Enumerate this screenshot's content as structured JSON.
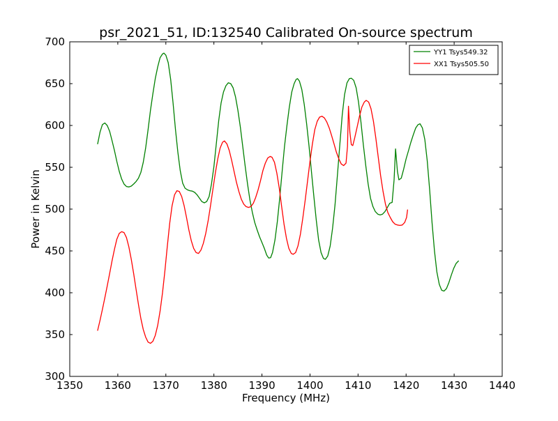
{
  "chart_data": {
    "type": "line",
    "title": "psr_2021_51, ID:132540 Calibrated On-source spectrum",
    "xlabel": "Frequency (MHz)",
    "ylabel": "Power in Kelvin",
    "xlim": [
      1350,
      1440
    ],
    "ylim": [
      300,
      700
    ],
    "x_ticks": [
      1350,
      1360,
      1370,
      1380,
      1390,
      1400,
      1410,
      1420,
      1430,
      1440
    ],
    "y_ticks": [
      300,
      350,
      400,
      450,
      500,
      550,
      600,
      650,
      700
    ],
    "grid": false,
    "legend_position": "upper-right",
    "series": [
      {
        "name": "YY1 Tsys549.32",
        "color": "#008000",
        "points": [
          [
            1355.8,
            578
          ],
          [
            1356.3,
            592
          ],
          [
            1356.8,
            601
          ],
          [
            1357.3,
            603
          ],
          [
            1357.8,
            600
          ],
          [
            1358.3,
            593
          ],
          [
            1358.8,
            582
          ],
          [
            1359.3,
            570
          ],
          [
            1359.8,
            557
          ],
          [
            1360.3,
            545
          ],
          [
            1360.8,
            536
          ],
          [
            1361.3,
            530
          ],
          [
            1361.8,
            527
          ],
          [
            1362.3,
            526.5
          ],
          [
            1362.8,
            527.5
          ],
          [
            1363.3,
            530
          ],
          [
            1363.8,
            533
          ],
          [
            1364.3,
            537
          ],
          [
            1364.8,
            544
          ],
          [
            1365.3,
            556
          ],
          [
            1365.8,
            573
          ],
          [
            1366.3,
            595
          ],
          [
            1366.8,
            618
          ],
          [
            1367.3,
            638
          ],
          [
            1367.8,
            656
          ],
          [
            1368.3,
            670
          ],
          [
            1368.8,
            681
          ],
          [
            1369.3,
            685.5
          ],
          [
            1369.6,
            686.5
          ],
          [
            1370.0,
            684
          ],
          [
            1370.5,
            675
          ],
          [
            1371.0,
            655
          ],
          [
            1371.5,
            627
          ],
          [
            1372.0,
            595
          ],
          [
            1372.5,
            568
          ],
          [
            1373.0,
            546
          ],
          [
            1373.5,
            531
          ],
          [
            1374.0,
            525
          ],
          [
            1374.5,
            523
          ],
          [
            1375.0,
            522
          ],
          [
            1375.5,
            521.5
          ],
          [
            1376.0,
            520
          ],
          [
            1376.5,
            517
          ],
          [
            1377.0,
            513
          ],
          [
            1377.5,
            509
          ],
          [
            1378.0,
            507.5
          ],
          [
            1378.5,
            509
          ],
          [
            1379.0,
            515
          ],
          [
            1379.5,
            530
          ],
          [
            1380.0,
            551
          ],
          [
            1380.5,
            578
          ],
          [
            1381.0,
            606
          ],
          [
            1381.5,
            627
          ],
          [
            1382.0,
            640
          ],
          [
            1382.5,
            647.5
          ],
          [
            1383.0,
            651
          ],
          [
            1383.5,
            650
          ],
          [
            1384.0,
            645
          ],
          [
            1384.5,
            634
          ],
          [
            1385.0,
            618
          ],
          [
            1385.5,
            598
          ],
          [
            1386.0,
            575
          ],
          [
            1386.5,
            552
          ],
          [
            1387.0,
            530
          ],
          [
            1387.5,
            511
          ],
          [
            1388.0,
            496
          ],
          [
            1388.5,
            484
          ],
          [
            1389.0,
            475
          ],
          [
            1389.5,
            467
          ],
          [
            1390.0,
            460
          ],
          [
            1390.5,
            453
          ],
          [
            1391.0,
            445
          ],
          [
            1391.4,
            441.5
          ],
          [
            1391.8,
            442
          ],
          [
            1392.2,
            448
          ],
          [
            1392.7,
            463
          ],
          [
            1393.2,
            485
          ],
          [
            1393.7,
            513
          ],
          [
            1394.2,
            545
          ],
          [
            1394.7,
            575
          ],
          [
            1395.2,
            600
          ],
          [
            1395.7,
            622
          ],
          [
            1396.2,
            640
          ],
          [
            1396.7,
            650
          ],
          [
            1397.1,
            655
          ],
          [
            1397.4,
            656
          ],
          [
            1397.8,
            653
          ],
          [
            1398.3,
            643
          ],
          [
            1398.8,
            625
          ],
          [
            1399.3,
            602
          ],
          [
            1399.8,
            575
          ],
          [
            1400.3,
            545
          ],
          [
            1400.8,
            515
          ],
          [
            1401.3,
            487
          ],
          [
            1401.8,
            463
          ],
          [
            1402.3,
            448
          ],
          [
            1402.8,
            441
          ],
          [
            1403.2,
            440
          ],
          [
            1403.7,
            444
          ],
          [
            1404.2,
            456
          ],
          [
            1404.7,
            477
          ],
          [
            1405.2,
            505
          ],
          [
            1405.7,
            540
          ],
          [
            1406.2,
            577
          ],
          [
            1406.7,
            612
          ],
          [
            1407.2,
            637
          ],
          [
            1407.7,
            651
          ],
          [
            1408.2,
            656
          ],
          [
            1408.6,
            656.5
          ],
          [
            1409.1,
            654
          ],
          [
            1409.6,
            645
          ],
          [
            1410.1,
            628
          ],
          [
            1410.6,
            604
          ],
          [
            1411.1,
            577
          ],
          [
            1411.6,
            552
          ],
          [
            1412.1,
            530
          ],
          [
            1412.6,
            513
          ],
          [
            1413.1,
            503
          ],
          [
            1413.6,
            497
          ],
          [
            1414.1,
            494
          ],
          [
            1414.6,
            493
          ],
          [
            1415.1,
            494
          ],
          [
            1415.6,
            497
          ],
          [
            1416.1,
            502
          ],
          [
            1416.6,
            507
          ],
          [
            1417.1,
            508
          ],
          [
            1417.5,
            535
          ],
          [
            1417.8,
            572
          ],
          [
            1418.2,
            545
          ],
          [
            1418.5,
            535
          ],
          [
            1419.0,
            537
          ],
          [
            1419.5,
            548
          ],
          [
            1420.0,
            560
          ],
          [
            1420.5,
            570
          ],
          [
            1421.0,
            580
          ],
          [
            1421.5,
            589
          ],
          [
            1422.0,
            597
          ],
          [
            1422.5,
            601
          ],
          [
            1422.9,
            602
          ],
          [
            1423.4,
            597
          ],
          [
            1423.9,
            583
          ],
          [
            1424.4,
            558
          ],
          [
            1424.9,
            523
          ],
          [
            1425.4,
            484
          ],
          [
            1425.9,
            450
          ],
          [
            1426.4,
            425
          ],
          [
            1426.9,
            410
          ],
          [
            1427.4,
            403
          ],
          [
            1427.9,
            402
          ],
          [
            1428.4,
            405
          ],
          [
            1428.9,
            412
          ],
          [
            1429.4,
            421
          ],
          [
            1429.9,
            429
          ],
          [
            1430.4,
            435
          ],
          [
            1430.9,
            438
          ]
        ]
      },
      {
        "name": "XX1 Tsys505.50",
        "color": "#ff0000",
        "points": [
          [
            1355.8,
            355
          ],
          [
            1356.3,
            367
          ],
          [
            1356.8,
            380
          ],
          [
            1357.3,
            394
          ],
          [
            1357.8,
            408
          ],
          [
            1358.3,
            423
          ],
          [
            1358.8,
            438
          ],
          [
            1359.3,
            452
          ],
          [
            1359.8,
            464
          ],
          [
            1360.3,
            471
          ],
          [
            1360.8,
            473
          ],
          [
            1361.3,
            472
          ],
          [
            1361.8,
            466
          ],
          [
            1362.3,
            455
          ],
          [
            1362.8,
            440
          ],
          [
            1363.3,
            423
          ],
          [
            1363.8,
            404
          ],
          [
            1364.3,
            386
          ],
          [
            1364.8,
            369
          ],
          [
            1365.3,
            356
          ],
          [
            1365.8,
            347
          ],
          [
            1366.3,
            341
          ],
          [
            1366.8,
            339.5
          ],
          [
            1367.3,
            342
          ],
          [
            1367.8,
            349
          ],
          [
            1368.3,
            361
          ],
          [
            1368.8,
            378
          ],
          [
            1369.3,
            400
          ],
          [
            1369.8,
            426
          ],
          [
            1370.3,
            455
          ],
          [
            1370.8,
            483
          ],
          [
            1371.3,
            504
          ],
          [
            1371.8,
            517
          ],
          [
            1372.3,
            522
          ],
          [
            1372.8,
            521
          ],
          [
            1373.3,
            515
          ],
          [
            1373.8,
            504
          ],
          [
            1374.3,
            490
          ],
          [
            1374.8,
            475
          ],
          [
            1375.3,
            462
          ],
          [
            1375.8,
            453
          ],
          [
            1376.3,
            448
          ],
          [
            1376.8,
            447
          ],
          [
            1377.3,
            451
          ],
          [
            1377.8,
            459
          ],
          [
            1378.3,
            471
          ],
          [
            1378.8,
            486
          ],
          [
            1379.3,
            504
          ],
          [
            1379.8,
            524
          ],
          [
            1380.3,
            543
          ],
          [
            1380.8,
            560
          ],
          [
            1381.3,
            573
          ],
          [
            1381.8,
            580
          ],
          [
            1382.2,
            581.5
          ],
          [
            1382.7,
            578
          ],
          [
            1383.2,
            570
          ],
          [
            1383.7,
            558
          ],
          [
            1384.2,
            545
          ],
          [
            1384.7,
            532
          ],
          [
            1385.2,
            521
          ],
          [
            1385.7,
            512
          ],
          [
            1386.2,
            506
          ],
          [
            1386.7,
            503
          ],
          [
            1387.2,
            502
          ],
          [
            1387.7,
            503
          ],
          [
            1388.2,
            507
          ],
          [
            1388.7,
            514
          ],
          [
            1389.2,
            523
          ],
          [
            1389.7,
            534
          ],
          [
            1390.2,
            546
          ],
          [
            1390.7,
            555
          ],
          [
            1391.2,
            561
          ],
          [
            1391.7,
            563
          ],
          [
            1392.1,
            562
          ],
          [
            1392.6,
            556
          ],
          [
            1393.1,
            543
          ],
          [
            1393.6,
            525
          ],
          [
            1394.1,
            503
          ],
          [
            1394.6,
            482
          ],
          [
            1395.1,
            465
          ],
          [
            1395.6,
            453
          ],
          [
            1396.1,
            447
          ],
          [
            1396.5,
            446
          ],
          [
            1397.0,
            448
          ],
          [
            1397.5,
            456
          ],
          [
            1398.0,
            470
          ],
          [
            1398.5,
            489
          ],
          [
            1399.0,
            511
          ],
          [
            1399.5,
            534
          ],
          [
            1400.0,
            557
          ],
          [
            1400.5,
            578
          ],
          [
            1401.0,
            595
          ],
          [
            1401.5,
            605
          ],
          [
            1402.0,
            610
          ],
          [
            1402.5,
            611
          ],
          [
            1403.0,
            609
          ],
          [
            1403.5,
            604
          ],
          [
            1404.0,
            597
          ],
          [
            1404.5,
            588
          ],
          [
            1405.0,
            578
          ],
          [
            1405.5,
            568
          ],
          [
            1406.0,
            560
          ],
          [
            1406.5,
            554
          ],
          [
            1407.0,
            552
          ],
          [
            1407.5,
            555
          ],
          [
            1407.8,
            575
          ],
          [
            1408.0,
            623
          ],
          [
            1408.3,
            592
          ],
          [
            1408.6,
            577
          ],
          [
            1408.9,
            576
          ],
          [
            1409.3,
            585
          ],
          [
            1409.8,
            598
          ],
          [
            1410.3,
            611
          ],
          [
            1410.8,
            622
          ],
          [
            1411.3,
            628
          ],
          [
            1411.7,
            630
          ],
          [
            1412.2,
            628
          ],
          [
            1412.7,
            620
          ],
          [
            1413.2,
            605
          ],
          [
            1413.7,
            585
          ],
          [
            1414.2,
            562
          ],
          [
            1414.7,
            540
          ],
          [
            1415.2,
            521
          ],
          [
            1415.7,
            506
          ],
          [
            1416.2,
            496
          ],
          [
            1416.7,
            490
          ],
          [
            1417.2,
            485
          ],
          [
            1417.7,
            482
          ],
          [
            1418.2,
            481
          ],
          [
            1418.7,
            480.5
          ],
          [
            1419.2,
            481
          ],
          [
            1419.7,
            484
          ],
          [
            1420.1,
            490
          ],
          [
            1420.3,
            499
          ]
        ]
      }
    ]
  }
}
